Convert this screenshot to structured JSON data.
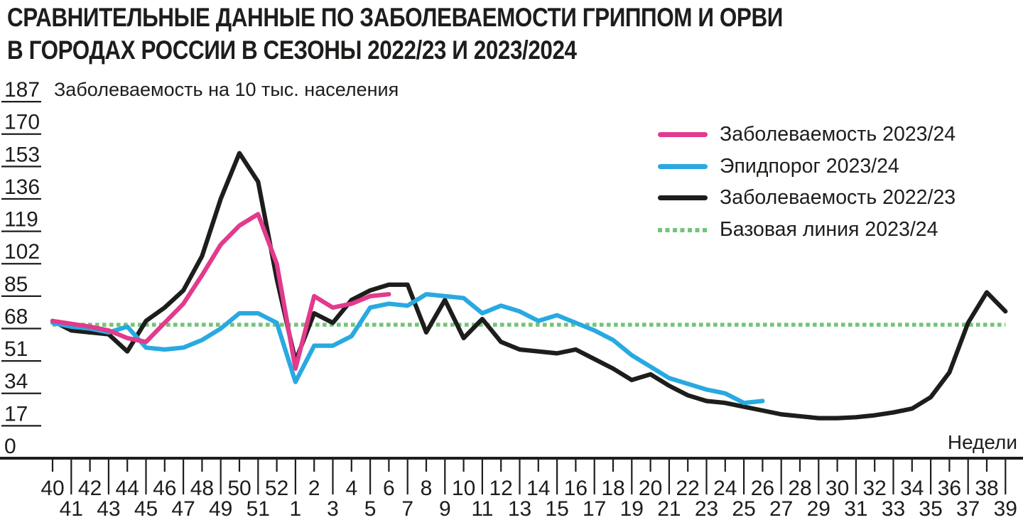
{
  "page": {
    "title_line1": "СРАВНИТЕЛЬНЫЕ ДАННЫЕ ПО ЗАБОЛЕВАЕМОСТИ ГРИППОМ И ОРВИ",
    "title_line2": "В ГОРОДАХ РОССИИ В СЕЗОНЫ 2022/23 И 2023/2024"
  },
  "axes": {
    "y_title": "Заболеваемость на 10 тыс. населения",
    "x_title": "Недели"
  },
  "colors": {
    "ink": "#1D1D1B",
    "background": "#FFFFFF",
    "incidence_2023_24": "#E23A8C",
    "epidemic_threshold_2023_24": "#29A9E1",
    "incidence_2022_23": "#1D1D1B",
    "baseline_2023_24": "#74C478"
  },
  "chart_data": {
    "type": "line",
    "title": "Сравнительные данные по заболеваемости гриппом и ОРВИ в городах России в сезоны 2022/23 и 2023/2024",
    "xlabel": "Недели",
    "ylabel": "Заболеваемость на 10 тыс. населения",
    "ylim": [
      0,
      187
    ],
    "y_ticks": [
      187,
      170,
      153,
      136,
      119,
      102,
      85,
      68,
      51,
      34,
      17,
      0
    ],
    "grid": false,
    "legend_position": "top-right",
    "x": [
      40,
      41,
      42,
      43,
      44,
      45,
      46,
      47,
      48,
      49,
      50,
      51,
      52,
      1,
      2,
      3,
      4,
      5,
      6,
      7,
      8,
      9,
      10,
      11,
      12,
      13,
      14,
      15,
      16,
      17,
      18,
      19,
      20,
      21,
      22,
      23,
      24,
      25,
      26,
      27,
      28,
      29,
      30,
      31,
      32,
      33,
      34,
      35,
      36,
      37,
      38,
      39
    ],
    "series": [
      {
        "name": "Заболеваемость 2023/24",
        "color": "#E23A8C",
        "style": "solid",
        "values": [
          72,
          70.5,
          69,
          67,
          63,
          61,
          71,
          81,
          96,
          112,
          122,
          128,
          102,
          47,
          85,
          79,
          81,
          85,
          86
        ]
      },
      {
        "name": "Эпидпорог 2023/24",
        "color": "#29A9E1",
        "style": "solid",
        "values": [
          71,
          69,
          68,
          66,
          69,
          58,
          57,
          58,
          62,
          68,
          76,
          76,
          71,
          40,
          59,
          59,
          64,
          79,
          81,
          80,
          86,
          85,
          84,
          76,
          80,
          77,
          72,
          75,
          71,
          67,
          62,
          54,
          48,
          42,
          39,
          36,
          34,
          29,
          30
        ]
      },
      {
        "name": "Заболеваемость 2022/23",
        "color": "#1D1D1B",
        "style": "solid",
        "values": [
          72,
          67,
          66,
          65,
          56,
          72,
          79,
          88,
          106,
          136,
          160,
          145,
          94,
          51,
          76,
          71,
          83,
          88,
          91,
          91,
          66,
          83,
          63,
          73,
          61,
          57,
          56,
          55,
          57,
          52,
          47,
          41,
          44,
          38,
          33,
          30,
          29,
          27,
          25,
          23,
          22,
          21,
          21,
          21.5,
          22.5,
          24,
          26,
          32,
          45,
          71,
          87,
          77
        ]
      },
      {
        "name": "Базовая линия 2023/24",
        "color": "#74C478",
        "style": "dotted",
        "constant_value": 70
      }
    ]
  }
}
